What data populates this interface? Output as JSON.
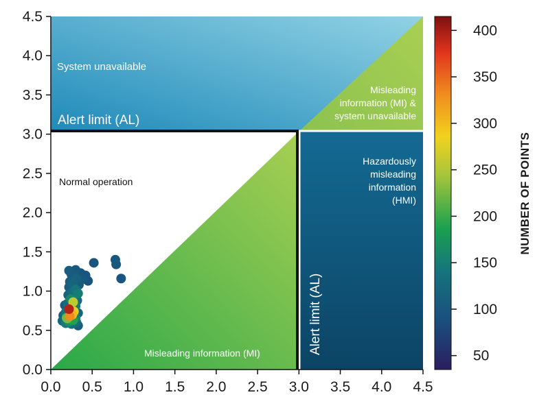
{
  "chart_data": {
    "type": "scatter",
    "title": "",
    "xlabel": "",
    "ylabel": "",
    "xlim": [
      0,
      4.5
    ],
    "ylim": [
      0,
      4.5
    ],
    "x_ticks": [
      "0.0",
      "0.5",
      "1.0",
      "1.5",
      "2.0",
      "2.5",
      "3.0",
      "3.5",
      "4.0",
      "4.5"
    ],
    "y_ticks": [
      "0.0",
      "0.5",
      "1.0",
      "1.5",
      "2.0",
      "2.5",
      "3.0",
      "3.5",
      "4.0",
      "4.5"
    ],
    "alert_limit": 3.0,
    "regions": {
      "system_unavailable": "System unavailable",
      "normal_operation": "Normal operation",
      "misleading_information": "Misleading information (MI)",
      "mi_and_unavailable": [
        "Misleading",
        "information (MI) &",
        "system unavailable"
      ],
      "hmi": [
        "Hazardously",
        "misleading",
        "information",
        "(HMI)"
      ],
      "alert_limit_horizontal": "Alert limit (AL)",
      "alert_limit_vertical": "Alert limit (AL)"
    },
    "region_colors": {
      "system_unavailable_start": "#1f8ab9",
      "system_unavailable_end": "#92d2e4",
      "mi_green_dark": "#2aa84a",
      "mi_green_light": "#a9cf52",
      "hmi_dark": "#0c4465",
      "hmi_light": "#146a93",
      "normal": "#ffffff",
      "frame": "#111111"
    },
    "colorbar": {
      "label": "NUMBER OF POINTS",
      "range": [
        35,
        415
      ],
      "ticks": [
        "50",
        "100",
        "150",
        "200",
        "250",
        "300",
        "350",
        "400"
      ],
      "colormap": [
        "#2a1e5e",
        "#1a4f7e",
        "#15747d",
        "#1aa14f",
        "#a6c53c",
        "#f1d21e",
        "#f08c1f",
        "#e0331d",
        "#7e1010"
      ]
    },
    "points": [
      {
        "x": 0.3,
        "y": 1.27,
        "count": 95
      },
      {
        "x": 0.22,
        "y": 1.26,
        "count": 100
      },
      {
        "x": 0.36,
        "y": 1.23,
        "count": 92
      },
      {
        "x": 0.25,
        "y": 1.21,
        "count": 98
      },
      {
        "x": 0.42,
        "y": 1.2,
        "count": 90
      },
      {
        "x": 0.31,
        "y": 1.16,
        "count": 105
      },
      {
        "x": 0.38,
        "y": 1.15,
        "count": 97
      },
      {
        "x": 0.45,
        "y": 1.13,
        "count": 88
      },
      {
        "x": 0.23,
        "y": 1.12,
        "count": 102
      },
      {
        "x": 0.27,
        "y": 1.09,
        "count": 110
      },
      {
        "x": 0.34,
        "y": 1.08,
        "count": 95
      },
      {
        "x": 0.22,
        "y": 1.05,
        "count": 100
      },
      {
        "x": 0.3,
        "y": 1.02,
        "count": 130
      },
      {
        "x": 0.26,
        "y": 0.99,
        "count": 120
      },
      {
        "x": 0.33,
        "y": 0.97,
        "count": 140
      },
      {
        "x": 0.21,
        "y": 0.95,
        "count": 108
      },
      {
        "x": 0.29,
        "y": 0.92,
        "count": 125
      },
      {
        "x": 0.24,
        "y": 0.9,
        "count": 150
      },
      {
        "x": 0.32,
        "y": 0.88,
        "count": 115
      },
      {
        "x": 0.27,
        "y": 0.86,
        "count": 240
      },
      {
        "x": 0.2,
        "y": 0.84,
        "count": 118
      },
      {
        "x": 0.17,
        "y": 0.82,
        "count": 100
      },
      {
        "x": 0.3,
        "y": 0.81,
        "count": 135
      },
      {
        "x": 0.25,
        "y": 0.79,
        "count": 170
      },
      {
        "x": 0.22,
        "y": 0.77,
        "count": 390
      },
      {
        "x": 0.28,
        "y": 0.74,
        "count": 260
      },
      {
        "x": 0.18,
        "y": 0.73,
        "count": 128
      },
      {
        "x": 0.33,
        "y": 0.72,
        "count": 110
      },
      {
        "x": 0.26,
        "y": 0.7,
        "count": 290
      },
      {
        "x": 0.15,
        "y": 0.69,
        "count": 105
      },
      {
        "x": 0.23,
        "y": 0.68,
        "count": 320
      },
      {
        "x": 0.3,
        "y": 0.66,
        "count": 145
      },
      {
        "x": 0.2,
        "y": 0.65,
        "count": 210
      },
      {
        "x": 0.27,
        "y": 0.63,
        "count": 180
      },
      {
        "x": 0.14,
        "y": 0.62,
        "count": 115
      },
      {
        "x": 0.22,
        "y": 0.61,
        "count": 160
      },
      {
        "x": 0.31,
        "y": 0.6,
        "count": 120
      },
      {
        "x": 0.18,
        "y": 0.59,
        "count": 135
      },
      {
        "x": 0.25,
        "y": 0.58,
        "count": 125
      },
      {
        "x": 0.33,
        "y": 0.56,
        "count": 100
      },
      {
        "x": 0.19,
        "y": 0.66,
        "count": 200
      },
      {
        "x": 0.52,
        "y": 1.36,
        "count": 90
      },
      {
        "x": 0.78,
        "y": 1.4,
        "count": 92
      },
      {
        "x": 0.79,
        "y": 1.34,
        "count": 95
      },
      {
        "x": 0.85,
        "y": 1.16,
        "count": 90
      }
    ]
  }
}
